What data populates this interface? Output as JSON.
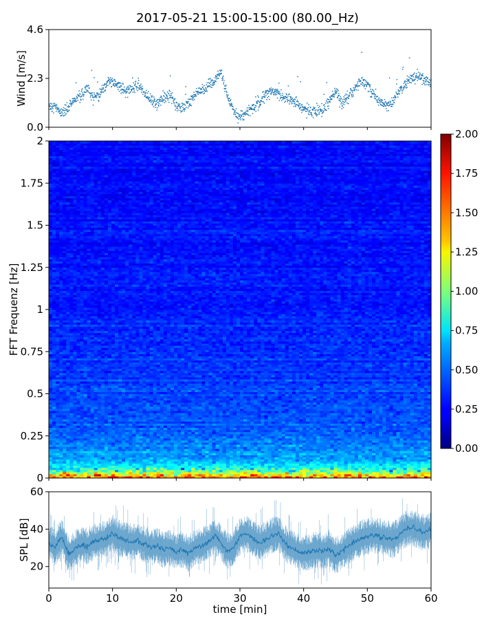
{
  "figure": {
    "title": "2017-05-21 15:00-15:00 (80.00_Hz)"
  },
  "chart_data": [
    {
      "type": "scatter",
      "panel": "wind",
      "ylabel": "Wind [m/s]",
      "xlim": [
        0,
        60
      ],
      "ylim": [
        0,
        4.6
      ],
      "yticks": [
        "0.0",
        "2.3",
        "4.6"
      ],
      "grid": false,
      "series": [
        {
          "color": "#1f77b4",
          "x": [
            0,
            1,
            2,
            3,
            4,
            5,
            6,
            7,
            8,
            9,
            10,
            11,
            12,
            13,
            14,
            15,
            16,
            17,
            18,
            19,
            20,
            21,
            22,
            23,
            24,
            25,
            26,
            27,
            28,
            29,
            30,
            31,
            32,
            33,
            34,
            35,
            36,
            37,
            38,
            39,
            40,
            41,
            42,
            43,
            44,
            45,
            46,
            47,
            48,
            49,
            50,
            51,
            52,
            53,
            54,
            55,
            56,
            57,
            58,
            59,
            60
          ],
          "y": [
            1.0,
            0.9,
            0.7,
            0.9,
            1.3,
            1.5,
            1.8,
            1.4,
            1.6,
            2.0,
            2.2,
            1.9,
            1.7,
            1.8,
            2.0,
            1.6,
            1.3,
            1.1,
            1.4,
            1.5,
            1.0,
            0.9,
            1.2,
            1.5,
            1.7,
            1.9,
            2.2,
            2.6,
            1.5,
            0.8,
            0.5,
            0.7,
            0.9,
            1.2,
            1.5,
            1.7,
            1.6,
            1.4,
            1.3,
            1.1,
            0.9,
            0.8,
            0.7,
            0.8,
            1.2,
            1.7,
            1.1,
            1.4,
            1.8,
            2.2,
            2.0,
            1.5,
            1.2,
            1.0,
            1.2,
            1.7,
            2.0,
            2.3,
            2.4,
            2.2,
            2.1
          ]
        }
      ]
    },
    {
      "type": "heatmap",
      "panel": "spectrogram",
      "ylabel": "FFT Frequenz [Hz]",
      "xlim": [
        0,
        60
      ],
      "ylim": [
        0,
        2
      ],
      "yticks": [
        "0",
        "0.25",
        "0.5",
        "0.75",
        "1",
        "1.25",
        "1.5",
        "1.75",
        "2"
      ],
      "colormap": "jet",
      "colorbar": {
        "range": [
          0,
          2
        ],
        "ticks": [
          "0.00",
          "0.25",
          "0.50",
          "0.75",
          "1.00",
          "1.25",
          "1.50",
          "1.75",
          "2.00"
        ]
      },
      "frequency_profile": {
        "frequency": [
          0.0,
          0.02,
          0.05,
          0.1,
          0.15,
          0.2,
          0.3,
          0.5,
          0.75,
          1.0,
          1.5,
          2.0
        ],
        "typical_level": [
          1.7,
          1.3,
          0.8,
          0.6,
          0.55,
          0.5,
          0.42,
          0.38,
          0.34,
          0.3,
          0.28,
          0.26
        ]
      }
    },
    {
      "type": "line",
      "panel": "spl",
      "ylabel": "SPL [dB]",
      "xlabel": "time [min]",
      "xlim": [
        0,
        60
      ],
      "ylim": [
        8.5,
        60
      ],
      "yticks": [
        "20",
        "40",
        "60"
      ],
      "xticks": [
        "0",
        "10",
        "20",
        "30",
        "40",
        "50",
        "60"
      ],
      "grid": false,
      "series": [
        {
          "color": "#1f77b4",
          "x": [
            0,
            1,
            2,
            3,
            4,
            5,
            6,
            7,
            8,
            9,
            10,
            11,
            12,
            13,
            14,
            15,
            16,
            17,
            18,
            19,
            20,
            21,
            22,
            23,
            24,
            25,
            26,
            27,
            28,
            29,
            30,
            31,
            32,
            33,
            34,
            35,
            36,
            37,
            38,
            39,
            40,
            41,
            42,
            43,
            44,
            45,
            46,
            47,
            48,
            49,
            50,
            51,
            52,
            53,
            54,
            55,
            56,
            57,
            58,
            59,
            60
          ],
          "y": [
            33,
            30,
            36,
            27,
            29,
            32,
            31,
            33,
            34,
            35,
            38,
            35,
            34,
            33,
            34,
            32,
            30,
            31,
            29,
            30,
            28,
            29,
            27,
            30,
            31,
            33,
            36,
            33,
            28,
            30,
            36,
            38,
            35,
            33,
            34,
            36,
            38,
            33,
            30,
            28,
            27,
            28,
            29,
            28,
            30,
            26,
            28,
            31,
            33,
            35,
            36,
            37,
            36,
            35,
            34,
            37,
            40,
            41,
            39,
            38,
            40
          ]
        }
      ]
    }
  ]
}
